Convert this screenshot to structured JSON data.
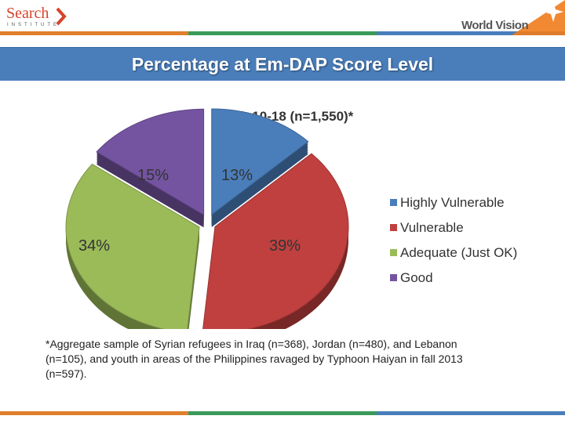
{
  "header": {
    "search_logo": {
      "word": "Search",
      "sub": "INSTITUTE"
    },
    "partner_logo": "World Vision"
  },
  "colors": {
    "stripe": [
      "#e07f2c",
      "#3a9a5a",
      "#4a7ebb"
    ],
    "title_bar": "#4a7ebb"
  },
  "title": "Percentage at Em-DAP Score Level",
  "chart_data": {
    "type": "pie",
    "subtitle": "Youth 10-18 (n=1,550)*",
    "legend_position": "right",
    "slices": [
      {
        "label": "Highly Vulnerable",
        "value": 13,
        "display": "13%",
        "color": "#4a7ebb"
      },
      {
        "label": "Vulnerable",
        "value": 39,
        "display": "39%",
        "color": "#c0403f"
      },
      {
        "label": "Adequate (Just OK)",
        "value": 34,
        "display": "34%",
        "color": "#9bbb59"
      },
      {
        "label": "Good",
        "value": 15,
        "display": "15%",
        "color": "#7454a0"
      }
    ]
  },
  "footnote": "*Aggregate sample of Syrian refugees in Iraq (n=368), Jordan (n=480), and Lebanon (n=105), and youth in areas of the Philippines ravaged by Typhoon Haiyan in fall 2013 (n=597)."
}
